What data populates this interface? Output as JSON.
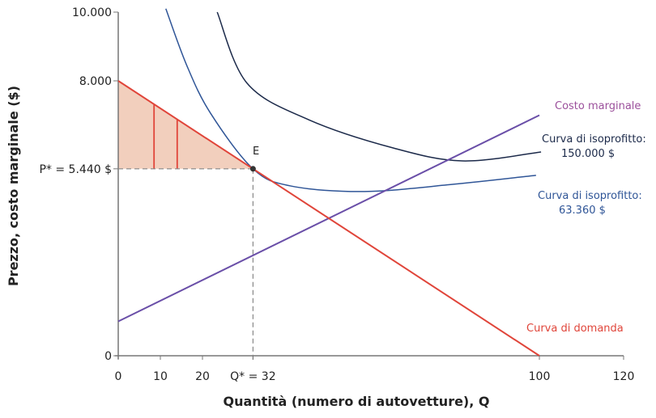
{
  "chart_data": {
    "type": "line",
    "xlabel": "Quantità (numero di autovetture), Q",
    "ylabel": "Prezzo, costo marginale ($)",
    "xlim": [
      0,
      120
    ],
    "ylim": [
      0,
      10000
    ],
    "x_ticks": [
      {
        "value": 0,
        "label": "0"
      },
      {
        "value": 10,
        "label": "10"
      },
      {
        "value": 20,
        "label": "20"
      },
      {
        "value": 32,
        "label": "Q* = 32"
      },
      {
        "value": 100,
        "label": "100"
      },
      {
        "value": 120,
        "label": "120"
      }
    ],
    "y_ticks": [
      {
        "value": 0,
        "label": "0"
      },
      {
        "value": 5440,
        "label": "P* = 5.440 $"
      },
      {
        "value": 8000,
        "label": "8.000"
      },
      {
        "value": 10000,
        "label": "10.000"
      }
    ],
    "grid": false,
    "colors": {
      "demand": "#e0453a",
      "marginal_cost": "#6a4fa8",
      "isoprofit_high": "#1c2a4a",
      "isoprofit_low": "#2f5597",
      "surplus_fill": "#f2cfbd",
      "axis": "#777777"
    },
    "series": [
      {
        "name": "Curva di domanda",
        "points": [
          [
            0,
            8000
          ],
          [
            100,
            0
          ]
        ]
      },
      {
        "name": "Costo marginale",
        "points": [
          [
            0,
            1000
          ],
          [
            100,
            7000
          ]
        ]
      },
      {
        "name": "Curva di isoprofitto: 150.000 $",
        "points": [
          [
            23.5,
            10000
          ],
          [
            30.6,
            7930
          ],
          [
            45.2,
            6870
          ],
          [
            65.2,
            6050
          ],
          [
            81.7,
            5670
          ],
          [
            100.4,
            5930
          ]
        ]
      },
      {
        "name": "Curva di isoprofitto: 63.360 $",
        "points": [
          [
            11.3,
            10100
          ],
          [
            16.2,
            8470
          ],
          [
            21.9,
            7060
          ],
          [
            32,
            5440
          ],
          [
            41,
            4940
          ],
          [
            58.5,
            4780
          ],
          [
            79.6,
            4990
          ],
          [
            99.2,
            5250
          ]
        ]
      }
    ],
    "equilibrium": {
      "label": "E",
      "q": 32,
      "p": 5440
    },
    "surplus_area": {
      "from_q": 0,
      "to_q": 32,
      "price": 5440
    },
    "surplus_dividers_q": [
      8.5,
      14
    ]
  }
}
